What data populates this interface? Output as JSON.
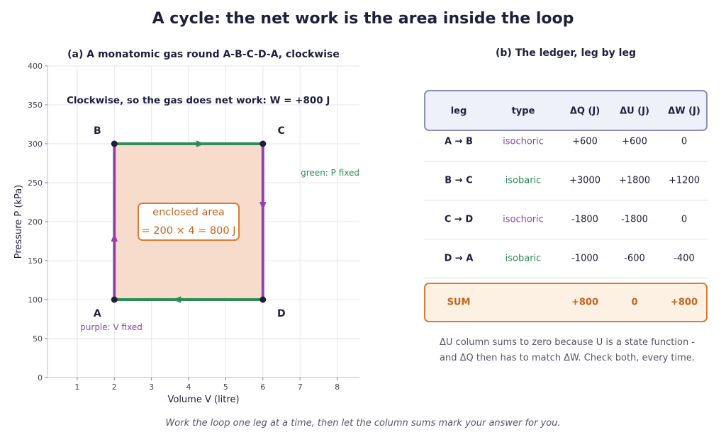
{
  "title": "A cycle: the net work is the area inside the loop",
  "footer": "Work the loop one leg at a time, then let the column sums mark your answer for you.",
  "colors": {
    "isobaric": "#2e8b57",
    "isochoric": "#8e44ad",
    "area_fill": "#f7dccb",
    "area_border": "#d97b34",
    "point": "#1f1f3d"
  },
  "chart_data": [
    {
      "type": "line",
      "title": "(a) A monatomic gas round A-B-C-D-A, clockwise",
      "xlabel": "Volume V (litre)",
      "ylabel": "Pressure P (kPa)",
      "xlim": [
        0.2,
        8.6
      ],
      "ylim": [
        0,
        400
      ],
      "xticks": [
        1,
        2,
        3,
        4,
        5,
        6,
        7,
        8
      ],
      "yticks": [
        0,
        50,
        100,
        150,
        200,
        250,
        300,
        350,
        400
      ],
      "grid": true,
      "points": [
        {
          "label": "A",
          "x": 2,
          "y": 100
        },
        {
          "label": "B",
          "x": 2,
          "y": 300
        },
        {
          "label": "C",
          "x": 6,
          "y": 300
        },
        {
          "label": "D",
          "x": 6,
          "y": 100
        }
      ],
      "legs": [
        {
          "from": "A",
          "to": "B",
          "kind": "isochoric"
        },
        {
          "from": "B",
          "to": "C",
          "kind": "isobaric"
        },
        {
          "from": "C",
          "to": "D",
          "kind": "isochoric"
        },
        {
          "from": "D",
          "to": "A",
          "kind": "isobaric"
        }
      ],
      "annotations": {
        "headline": "Clockwise, so the gas does net work: W = +800 J",
        "area_label_line1": "enclosed area",
        "area_label_line2": "= 200 × 4 = 800 J",
        "green_note": "green: P fixed",
        "purple_note": "purple: V fixed"
      }
    },
    {
      "type": "table",
      "title": "(b) The ledger, leg by leg",
      "columns": [
        "leg",
        "type",
        "ΔQ (J)",
        "ΔU (J)",
        "ΔW (J)"
      ],
      "rows": [
        {
          "leg": "A → B",
          "type": "isochoric",
          "dQ": "+600",
          "dU": "+600",
          "dW": "0"
        },
        {
          "leg": "B → C",
          "type": "isobaric",
          "dQ": "+3000",
          "dU": "+1800",
          "dW": "+1200"
        },
        {
          "leg": "C → D",
          "type": "isochoric",
          "dQ": "-1800",
          "dU": "-1800",
          "dW": "0"
        },
        {
          "leg": "D → A",
          "type": "isobaric",
          "dQ": "-1000",
          "dU": "-600",
          "dW": "-400"
        }
      ],
      "sum": {
        "leg": "SUM",
        "dQ": "+800",
        "dU": "0",
        "dW": "+800"
      },
      "note_line1": "ΔU column sums to zero because U is a state function -",
      "note_line2": "and ΔQ then has to match ΔW. Check both, every time."
    }
  ]
}
